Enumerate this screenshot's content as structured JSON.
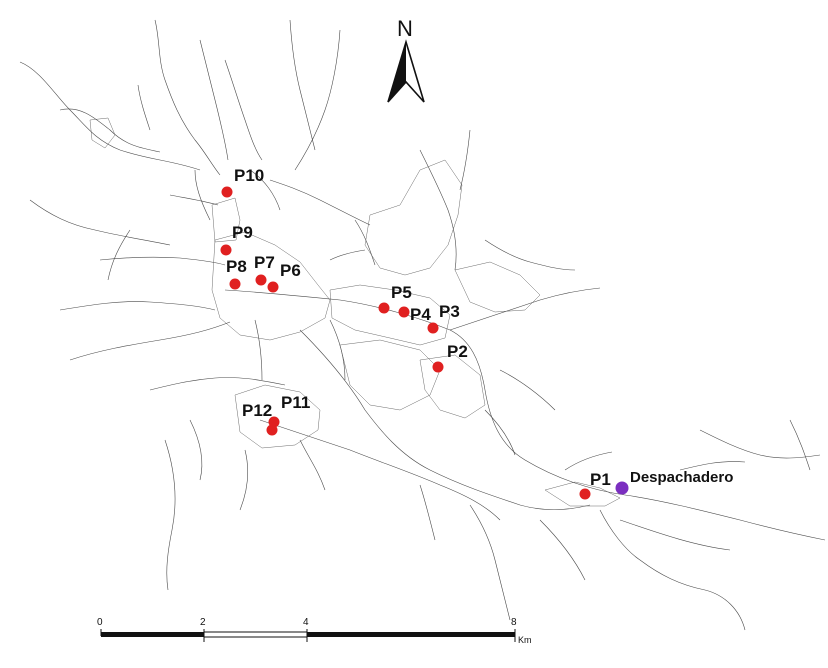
{
  "map": {
    "north_label": "N",
    "points": [
      {
        "id": "P1",
        "label": "P1",
        "color": "#e02020"
      },
      {
        "id": "P2",
        "label": "P2",
        "color": "#e02020"
      },
      {
        "id": "P3",
        "label": "P3",
        "color": "#e02020"
      },
      {
        "id": "P4",
        "label": "P4",
        "color": "#e02020"
      },
      {
        "id": "P5",
        "label": "P5",
        "color": "#e02020"
      },
      {
        "id": "P6",
        "label": "P6",
        "color": "#e02020"
      },
      {
        "id": "P7",
        "label": "P7",
        "color": "#e02020"
      },
      {
        "id": "P8",
        "label": "P8",
        "color": "#e02020"
      },
      {
        "id": "P9",
        "label": "P9",
        "color": "#e02020"
      },
      {
        "id": "P10",
        "label": "P10",
        "color": "#e02020"
      },
      {
        "id": "P11",
        "label": "P11",
        "color": "#e02020"
      },
      {
        "id": "P12",
        "label": "P12",
        "color": "#e02020"
      }
    ],
    "dispatch": {
      "label": "Despachadero",
      "color": "#7b2fc0"
    },
    "scale_bar": {
      "ticks": [
        "0",
        "2",
        "4",
        "8"
      ],
      "unit": "Km"
    }
  }
}
